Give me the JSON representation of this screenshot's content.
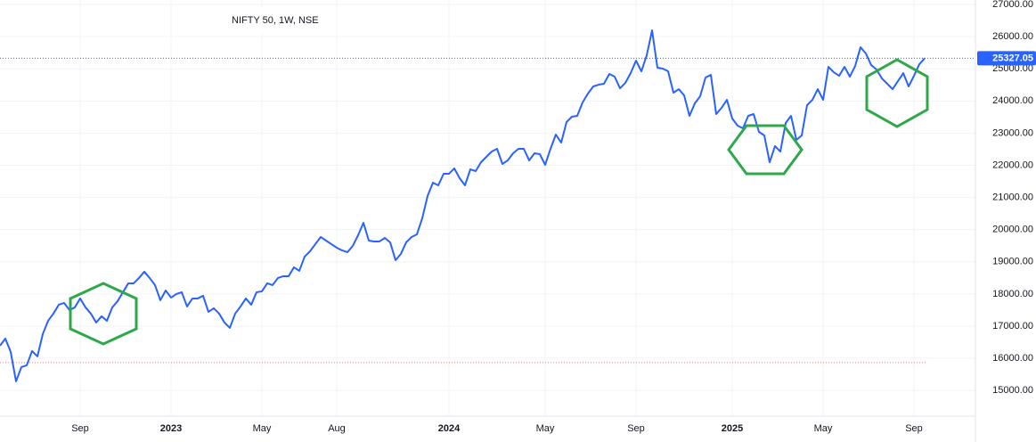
{
  "chart_data": {
    "type": "line",
    "title": "NIFTY 50, 1W, NSE",
    "categories": [
      null,
      null,
      null,
      null,
      null,
      null,
      null,
      null,
      null,
      null,
      null,
      null,
      null,
      null,
      null,
      "Sep",
      null,
      null,
      null,
      null,
      null,
      null,
      null,
      null,
      null,
      null,
      null,
      null,
      null,
      null,
      null,
      null,
      "2023",
      null,
      null,
      null,
      null,
      null,
      null,
      null,
      null,
      null,
      null,
      null,
      null,
      null,
      null,
      null,
      null,
      "May",
      null,
      null,
      null,
      null,
      null,
      null,
      null,
      null,
      null,
      null,
      null,
      null,
      null,
      "Aug",
      null,
      null,
      null,
      null,
      null,
      null,
      null,
      null,
      null,
      null,
      null,
      null,
      null,
      null,
      null,
      null,
      null,
      null,
      null,
      null,
      "2024",
      null,
      null,
      null,
      null,
      null,
      null,
      null,
      null,
      null,
      null,
      null,
      null,
      null,
      null,
      null,
      null,
      null,
      "May",
      null,
      null,
      null,
      null,
      null,
      null,
      null,
      null,
      null,
      null,
      null,
      null,
      null,
      null,
      null,
      null,
      "Sep",
      null,
      null,
      null,
      null,
      null,
      null,
      null,
      null,
      null,
      null,
      null,
      null,
      null,
      null,
      null,
      null,
      null,
      "2025",
      null,
      null,
      null,
      null,
      null,
      null,
      null,
      null,
      null,
      null,
      null,
      null,
      null,
      null,
      null,
      null,
      "May",
      null,
      null,
      null,
      null,
      null,
      null,
      null,
      null,
      null,
      null,
      null,
      null,
      null,
      null,
      null,
      null,
      "Sep",
      null,
      null
    ],
    "series": [
      {
        "name": "NIFTY 50",
        "color": "#2962ff",
        "values": [
          16391,
          16612,
          16197,
          15283,
          15726,
          15781,
          16224,
          16058,
          16751,
          17166,
          17388,
          17665,
          17720,
          17499,
          17582,
          17859,
          17582,
          17388,
          17111,
          17305,
          17166,
          17582,
          17776,
          18053,
          18330,
          18330,
          18496,
          18690,
          18496,
          18275,
          17804,
          18108,
          17887,
          17998,
          18053,
          17610,
          17859,
          17859,
          17942,
          17443,
          17554,
          17388,
          17111,
          16945,
          17388,
          17610,
          17859,
          17665,
          18053,
          18081,
          18330,
          18275,
          18496,
          18552,
          18552,
          18829,
          18718,
          19161,
          19327,
          19549,
          19770,
          19659,
          19549,
          19438,
          19355,
          19299,
          19493,
          19826,
          20213,
          19659,
          19632,
          19632,
          19742,
          19604,
          19050,
          19244,
          19604,
          19770,
          19853,
          20352,
          21046,
          21460,
          21377,
          21737,
          21737,
          21903,
          21599,
          21377,
          21875,
          21820,
          22097,
          22263,
          22429,
          22513,
          22042,
          22153,
          22374,
          22513,
          22513,
          22153,
          22374,
          22346,
          22014,
          22513,
          22956,
          22706,
          23344,
          23510,
          23538,
          23953,
          24230,
          24452,
          24507,
          24535,
          24840,
          24756,
          24396,
          24562,
          24867,
          25255,
          24923,
          25421,
          26197,
          25033,
          25006,
          24923,
          24258,
          24368,
          24175,
          23538,
          23925,
          24147,
          24729,
          24812,
          23593,
          23787,
          24036,
          23455,
          23233,
          23150,
          23538,
          23593,
          23039,
          22928,
          22097,
          22596,
          22429,
          23316,
          23538,
          22790,
          22928,
          23870,
          24036,
          24368,
          24036,
          25061,
          24895,
          24784,
          25061,
          24756,
          25089,
          25670,
          25477,
          25116,
          24978,
          24701,
          24535,
          24368,
          24618,
          24867,
          24452,
          24784,
          25144,
          25327.05
        ]
      }
    ],
    "ylim": [
      14200,
      27140
    ],
    "yticks": [
      {
        "value": 15000,
        "label": "15000.00"
      },
      {
        "value": 16000,
        "label": "16000.00"
      },
      {
        "value": 17000,
        "label": "17000.00"
      },
      {
        "value": 18000,
        "label": "18000.00"
      },
      {
        "value": 19000,
        "label": "19000.00"
      },
      {
        "value": 20000,
        "label": "20000.00"
      },
      {
        "value": 21000,
        "label": "21000.00"
      },
      {
        "value": 22000,
        "label": "22000.00"
      },
      {
        "value": 23000,
        "label": "23000.00"
      },
      {
        "value": 24000,
        "label": "24000.00"
      },
      {
        "value": 25000,
        "label": "25000.00"
      },
      {
        "value": 26000,
        "label": "26000.00"
      },
      {
        "value": 27000,
        "label": "27000.00"
      }
    ],
    "grid": true,
    "hline": {
      "value": 15865,
      "color": "#f23645"
    }
  }
}
